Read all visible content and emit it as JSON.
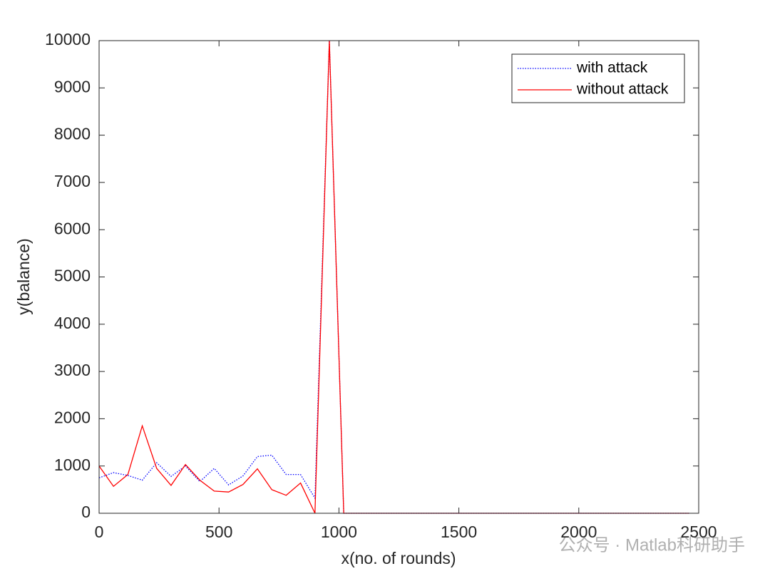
{
  "chart_data": {
    "type": "line",
    "x_label": "x(no. of rounds)",
    "y_label": "y(balance)",
    "x": [
      0,
      60,
      120,
      180,
      240,
      300,
      360,
      420,
      480,
      540,
      600,
      660,
      720,
      780,
      840,
      900,
      960,
      1020,
      2460
    ],
    "series": [
      {
        "name": "with attack",
        "color": "#0000ff",
        "dash": "dotted",
        "values": [
          750,
          860,
          800,
          700,
          1070,
          780,
          1000,
          670,
          950,
          600,
          790,
          1200,
          1230,
          820,
          820,
          320,
          10000,
          0,
          0
        ]
      },
      {
        "name": "without attack",
        "color": "#ff0000",
        "dash": "solid",
        "values": [
          1000,
          570,
          820,
          1850,
          950,
          590,
          1030,
          700,
          470,
          450,
          610,
          940,
          500,
          380,
          640,
          0,
          10000,
          0,
          0
        ]
      }
    ],
    "xlim": [
      0,
      2500
    ],
    "xticks": [
      0,
      500,
      1000,
      1500,
      2000,
      2500
    ],
    "ylim": [
      0,
      10000
    ],
    "yticks": [
      0,
      1000,
      2000,
      3000,
      4000,
      5000,
      6000,
      7000,
      8000,
      9000,
      10000
    ],
    "legend": "top-right",
    "grid": false
  },
  "watermark": "公众号 · Matlab科研助手"
}
